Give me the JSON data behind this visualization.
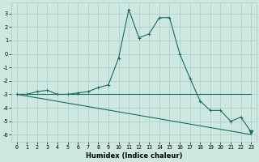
{
  "xlabel": "Humidex (Indice chaleur)",
  "background_color": "#cce8e0",
  "grid_color": "#aaccc4",
  "line_color": "#1a6b5a",
  "x_data": [
    0,
    1,
    2,
    3,
    4,
    5,
    6,
    7,
    8,
    9,
    10,
    11,
    12,
    13,
    14,
    15,
    16,
    17,
    18,
    19,
    20,
    21,
    22,
    23
  ],
  "y_main": [
    -3.0,
    -3.0,
    -2.8,
    -2.7,
    -3.0,
    -3.0,
    -2.9,
    -2.8,
    -2.5,
    -2.3,
    -0.3,
    3.3,
    1.2,
    1.5,
    2.7,
    2.7,
    0.0,
    -1.8,
    -3.5,
    -4.2,
    -4.2,
    -5.0,
    -4.7,
    -5.8
  ],
  "y_line1": [
    -3.0,
    -3.0,
    -3.0,
    -3.0,
    -3.0,
    -3.0,
    -3.0,
    -3.0,
    -3.0,
    -3.0,
    -3.0,
    -3.0,
    -3.0,
    -3.0,
    -3.0,
    -3.0,
    -3.0,
    -3.0,
    -3.0,
    -3.0,
    -3.0,
    -3.0,
    -3.0,
    -3.0
  ],
  "y_line2": [
    -3.0,
    -3.13,
    -3.26,
    -3.39,
    -3.52,
    -3.65,
    -3.78,
    -3.91,
    -4.04,
    -4.17,
    -4.3,
    -4.43,
    -4.56,
    -4.69,
    -4.82,
    -4.95,
    -5.08,
    -5.21,
    -5.34,
    -5.47,
    -5.6,
    -5.73,
    -5.86,
    -5.99
  ],
  "ylim": [
    -6.5,
    3.8
  ],
  "xlim": [
    -0.5,
    23.5
  ],
  "yticks": [
    -6,
    -5,
    -4,
    -3,
    -2,
    -1,
    0,
    1,
    2,
    3
  ],
  "xticks": [
    0,
    1,
    2,
    3,
    4,
    5,
    6,
    7,
    8,
    9,
    10,
    11,
    12,
    13,
    14,
    15,
    16,
    17,
    18,
    19,
    20,
    21,
    22,
    23
  ],
  "tick_fontsize": 4.8,
  "label_fontsize": 6.0,
  "marker": "+",
  "marker_size": 3.5,
  "line_width": 0.8
}
